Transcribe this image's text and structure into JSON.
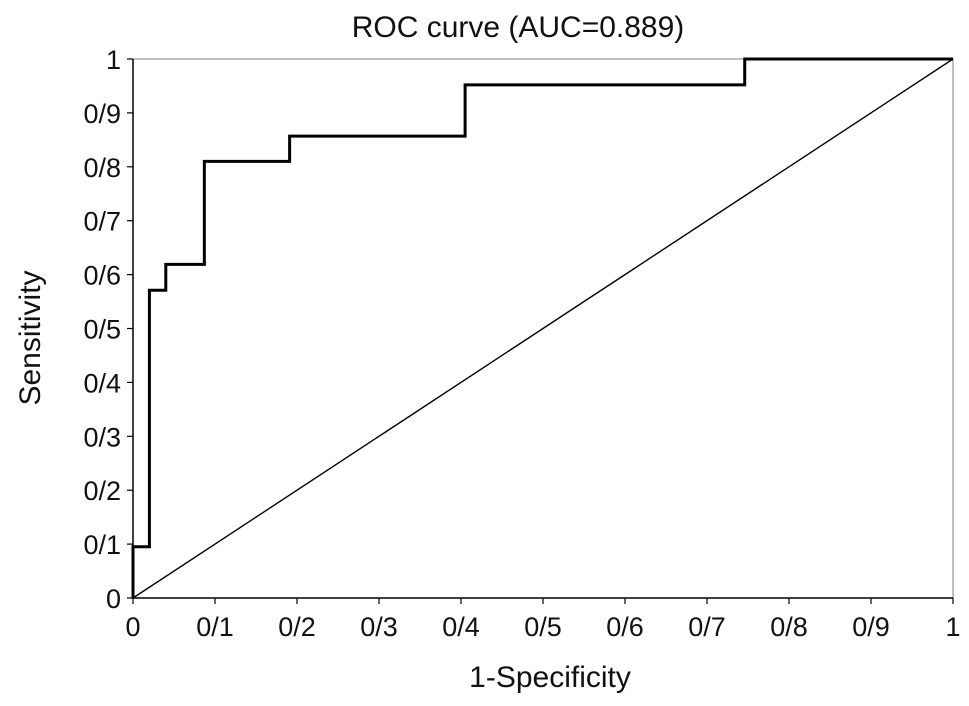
{
  "chart_data": {
    "type": "line",
    "title": "ROC curve (AUC=0.889)",
    "xlabel": "1-Specificity",
    "ylabel": "Sensitivity",
    "xlim": [
      0,
      1
    ],
    "ylim": [
      0,
      1
    ],
    "x_ticks": [
      {
        "value": 0,
        "label": "0"
      },
      {
        "value": 0.1,
        "label": "0/1"
      },
      {
        "value": 0.2,
        "label": "0/2"
      },
      {
        "value": 0.3,
        "label": "0/3"
      },
      {
        "value": 0.4,
        "label": "0/4"
      },
      {
        "value": 0.5,
        "label": "0/5"
      },
      {
        "value": 0.6,
        "label": "0/6"
      },
      {
        "value": 0.7,
        "label": "0/7"
      },
      {
        "value": 0.8,
        "label": "0/8"
      },
      {
        "value": 0.9,
        "label": "0/9"
      },
      {
        "value": 1,
        "label": "1"
      }
    ],
    "y_ticks": [
      {
        "value": 0,
        "label": "0"
      },
      {
        "value": 0.1,
        "label": "0/1"
      },
      {
        "value": 0.2,
        "label": "0/2"
      },
      {
        "value": 0.3,
        "label": "0/3"
      },
      {
        "value": 0.4,
        "label": "0/4"
      },
      {
        "value": 0.5,
        "label": "0/5"
      },
      {
        "value": 0.6,
        "label": "0/6"
      },
      {
        "value": 0.7,
        "label": "0/7"
      },
      {
        "value": 0.8,
        "label": "0/8"
      },
      {
        "value": 0.9,
        "label": "0/9"
      },
      {
        "value": 1,
        "label": "1"
      }
    ],
    "grid": false,
    "series": [
      {
        "style": "step",
        "color": "#000000",
        "x": [
          0,
          0,
          0.02,
          0.02,
          0.04,
          0.04,
          0.087,
          0.087,
          0.191,
          0.191,
          0.405,
          0.405,
          0.746,
          0.746,
          1
        ],
        "y": [
          0,
          0.095,
          0.095,
          0.571,
          0.571,
          0.619,
          0.619,
          0.81,
          0.81,
          0.857,
          0.857,
          0.952,
          0.952,
          1,
          1
        ]
      },
      {
        "style": "diagonal",
        "color": "#000000",
        "x": [
          0,
          1
        ],
        "y": [
          0,
          1
        ]
      }
    ]
  }
}
